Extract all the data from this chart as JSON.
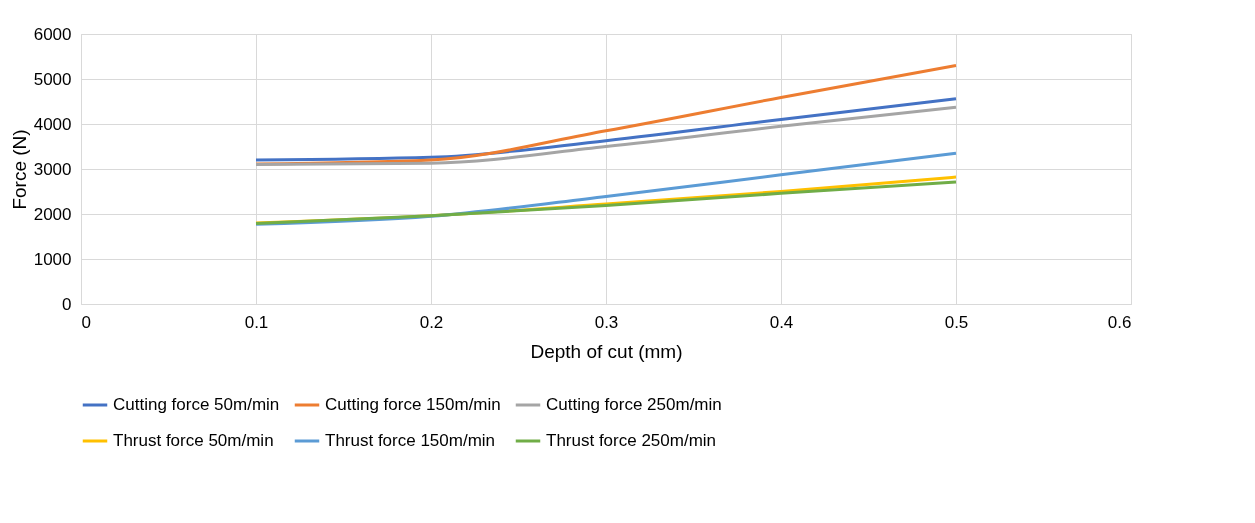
{
  "chart_data": {
    "type": "line",
    "xlabel": "Depth of cut (mm)",
    "ylabel": "Force (N)",
    "x": [
      0.1,
      0.2,
      0.3,
      0.4,
      0.5
    ],
    "series": [
      {
        "name": "Cutting force 50m/min",
        "color": "#4472c4",
        "values": [
          3200,
          3260,
          3630,
          4100,
          4560
        ]
      },
      {
        "name": "Cutting force 150m/min",
        "color": "#ed7d31",
        "values": [
          3110,
          3200,
          3850,
          4590,
          5300
        ]
      },
      {
        "name": "Cutting force 250m/min",
        "color": "#a5a5a5",
        "values": [
          3100,
          3130,
          3500,
          3950,
          4370
        ]
      },
      {
        "name": "Thrust force 50m/min",
        "color": "#ffc000",
        "values": [
          1800,
          1960,
          2220,
          2500,
          2820
        ]
      },
      {
        "name": "Thrust force 150m/min",
        "color": "#5b9bd5",
        "values": [
          1770,
          1950,
          2390,
          2870,
          3350
        ]
      },
      {
        "name": "Thrust force 250m/min",
        "color": "#70ad47",
        "values": [
          1790,
          1960,
          2190,
          2460,
          2710
        ]
      }
    ],
    "xlim": [
      0,
      0.6
    ],
    "xticks": [
      0,
      0.1,
      0.2,
      0.3,
      0.4,
      0.5,
      0.6
    ],
    "ylim": [
      0,
      6000
    ],
    "yticks": [
      0,
      1000,
      2000,
      3000,
      4000,
      5000,
      6000
    ],
    "grid": true,
    "legend": "bottom",
    "marker": "none",
    "line_style": "solid"
  }
}
